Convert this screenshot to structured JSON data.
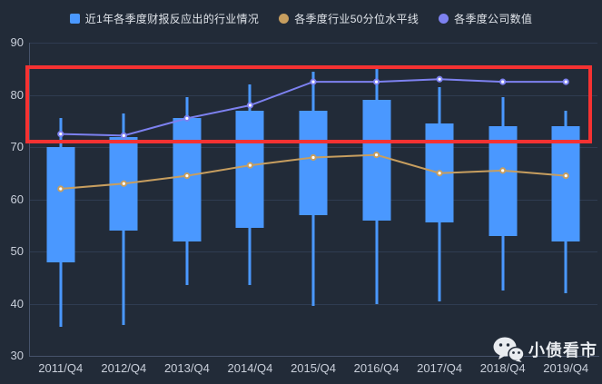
{
  "chart_data": {
    "type": "candlestick",
    "categories": [
      "2011/Q4",
      "2012/Q4",
      "2013/Q4",
      "2014/Q4",
      "2015/Q4",
      "2016/Q4",
      "2017/Q4",
      "2018/Q4",
      "2019/Q4"
    ],
    "ylim": [
      30,
      90
    ],
    "yticks": [
      30,
      40,
      50,
      60,
      70,
      80,
      90
    ],
    "grid": true,
    "legend_position": "top-center",
    "series": [
      {
        "name": "近1年各季度财报反应出的行业情况",
        "type": "candlestick",
        "marker": "square",
        "color": "#4a98ff",
        "data_format": [
          "low",
          "box_bottom",
          "box_top",
          "high"
        ],
        "data": [
          [
            35.5,
            48,
            70,
            75.5
          ],
          [
            36,
            54,
            72,
            76.5
          ],
          [
            43.5,
            52,
            75.5,
            79.5
          ],
          [
            43.5,
            54.5,
            77,
            82
          ],
          [
            39.5,
            57,
            77,
            84.5
          ],
          [
            40,
            56,
            79,
            85
          ],
          [
            40.5,
            55.5,
            74.5,
            81.5
          ],
          [
            42.5,
            53,
            74,
            79.5
          ],
          [
            42,
            52,
            74,
            77
          ]
        ]
      },
      {
        "name": "各季度行业50分位水平线",
        "type": "line",
        "marker": "circle",
        "color": "#c79e5f",
        "values": [
          62,
          63,
          64.5,
          66.5,
          68,
          68.5,
          65,
          65.5,
          64.5
        ]
      },
      {
        "name": "各季度公司数值",
        "type": "line",
        "marker": "circle",
        "color": "#7d81f0",
        "values": [
          72.5,
          72.2,
          75.5,
          78,
          82.5,
          82.5,
          83,
          82.5,
          82.5
        ]
      }
    ],
    "annotation": {
      "shape": "rectangle",
      "color": "#f53232",
      "y_min": 71,
      "y_max": 85.3,
      "spans": "all categories"
    }
  },
  "watermark": {
    "text": "小债看市",
    "icon": "wechat-icon"
  }
}
